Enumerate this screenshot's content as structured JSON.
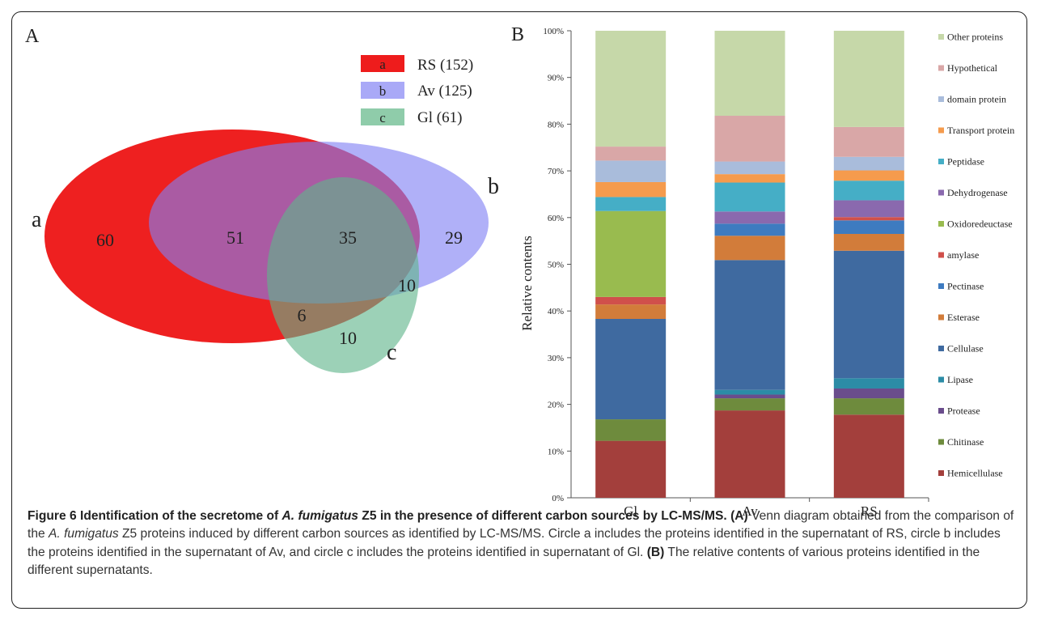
{
  "panel_a": {
    "label": "A",
    "legend": [
      {
        "key": "a",
        "label": "RS (152)",
        "color": "#ee1c1c"
      },
      {
        "key": "b",
        "label": "Av (125)",
        "color": "#a9a9f7"
      },
      {
        "key": "c",
        "label": "Gl (61)",
        "color": "#8fccaa"
      }
    ],
    "set_labels": {
      "a": "a",
      "b": "b",
      "c": "c"
    },
    "regions": {
      "a_only": "60",
      "ab": "51",
      "abc": "35",
      "b_only": "29",
      "bc": "10",
      "ac": "6",
      "c_only": "10"
    }
  },
  "panel_b": {
    "label": "B"
  },
  "chart_data": {
    "type": "bar",
    "stacked": true,
    "percent": true,
    "categories": [
      "Gl",
      "Av",
      "RS"
    ],
    "ylabel": "Relative contents",
    "ylim": [
      0,
      100
    ],
    "yticks": [
      "0%",
      "10%",
      "20%",
      "30%",
      "40%",
      "50%",
      "60%",
      "70%",
      "80%",
      "90%",
      "100%"
    ],
    "grid": false,
    "legend_position": "right",
    "series": [
      {
        "name": "Hemicellulase",
        "color": "#a33f3c",
        "values": [
          12.2,
          18.7,
          17.8
        ]
      },
      {
        "name": "Chitinase",
        "color": "#6e8b3d",
        "values": [
          4.6,
          2.6,
          3.5
        ]
      },
      {
        "name": "Protease",
        "color": "#6a4d8c",
        "values": [
          0,
          0.8,
          2.1
        ]
      },
      {
        "name": "Lipase",
        "color": "#2c8ca6",
        "values": [
          0,
          1.0,
          2.2
        ]
      },
      {
        "name": "Cellulase",
        "color": "#3f6aa0",
        "values": [
          21.5,
          27.8,
          27.3
        ]
      },
      {
        "name": "Esterase",
        "color": "#d27c3a",
        "values": [
          3.1,
          5.2,
          3.6
        ]
      },
      {
        "name": "Pectinase",
        "color": "#3e7bc0",
        "values": [
          0,
          2.6,
          2.9
        ]
      },
      {
        "name": "amylase",
        "color": "#d0504b",
        "values": [
          1.6,
          0,
          0.7
        ]
      },
      {
        "name": "Oxidoredeuctase",
        "color": "#99bb4f",
        "values": [
          18.4,
          0,
          0
        ]
      },
      {
        "name": "Dehydrogenase",
        "color": "#8a69ae",
        "values": [
          0,
          2.6,
          3.6
        ]
      },
      {
        "name": "Peptidase",
        "color": "#45aec6",
        "values": [
          3.0,
          6.2,
          4.2
        ]
      },
      {
        "name": "Transport protein",
        "color": "#f59b4d",
        "values": [
          3.2,
          1.8,
          2.2
        ]
      },
      {
        "name": "domain protein",
        "color": "#a9bcdb",
        "values": [
          4.6,
          2.7,
          2.9
        ]
      },
      {
        "name": "Hypothetical",
        "color": "#d9a7a7",
        "values": [
          3.0,
          9.8,
          6.4
        ]
      },
      {
        "name": "Other proteins",
        "color": "#c6d8a9",
        "values": [
          24.8,
          18.2,
          20.6
        ]
      }
    ]
  },
  "caption": {
    "title_prefix": "Figure 6 Identification of the secretome of ",
    "title_species": "A. fumigatus",
    "title_suffix": " Z5 in the presence of different carbon sources by LC-MS/MS.",
    "tag_a": " (A)",
    "text_a1": " Venn diagram obtained from the comparison of the ",
    "text_a_species": "A. fumigatus",
    "text_a2": " Z5 proteins induced by different carbon sources as identified by LC-MS/MS. Circle a includes the proteins identified in the supernatant of RS, circle b includes the proteins identified in the supernatant of Av, and circle c includes the proteins identified in supernatant of Gl.",
    "tag_b": " (B)",
    "text_b": " The relative contents of various proteins identified in the different supernatants."
  }
}
